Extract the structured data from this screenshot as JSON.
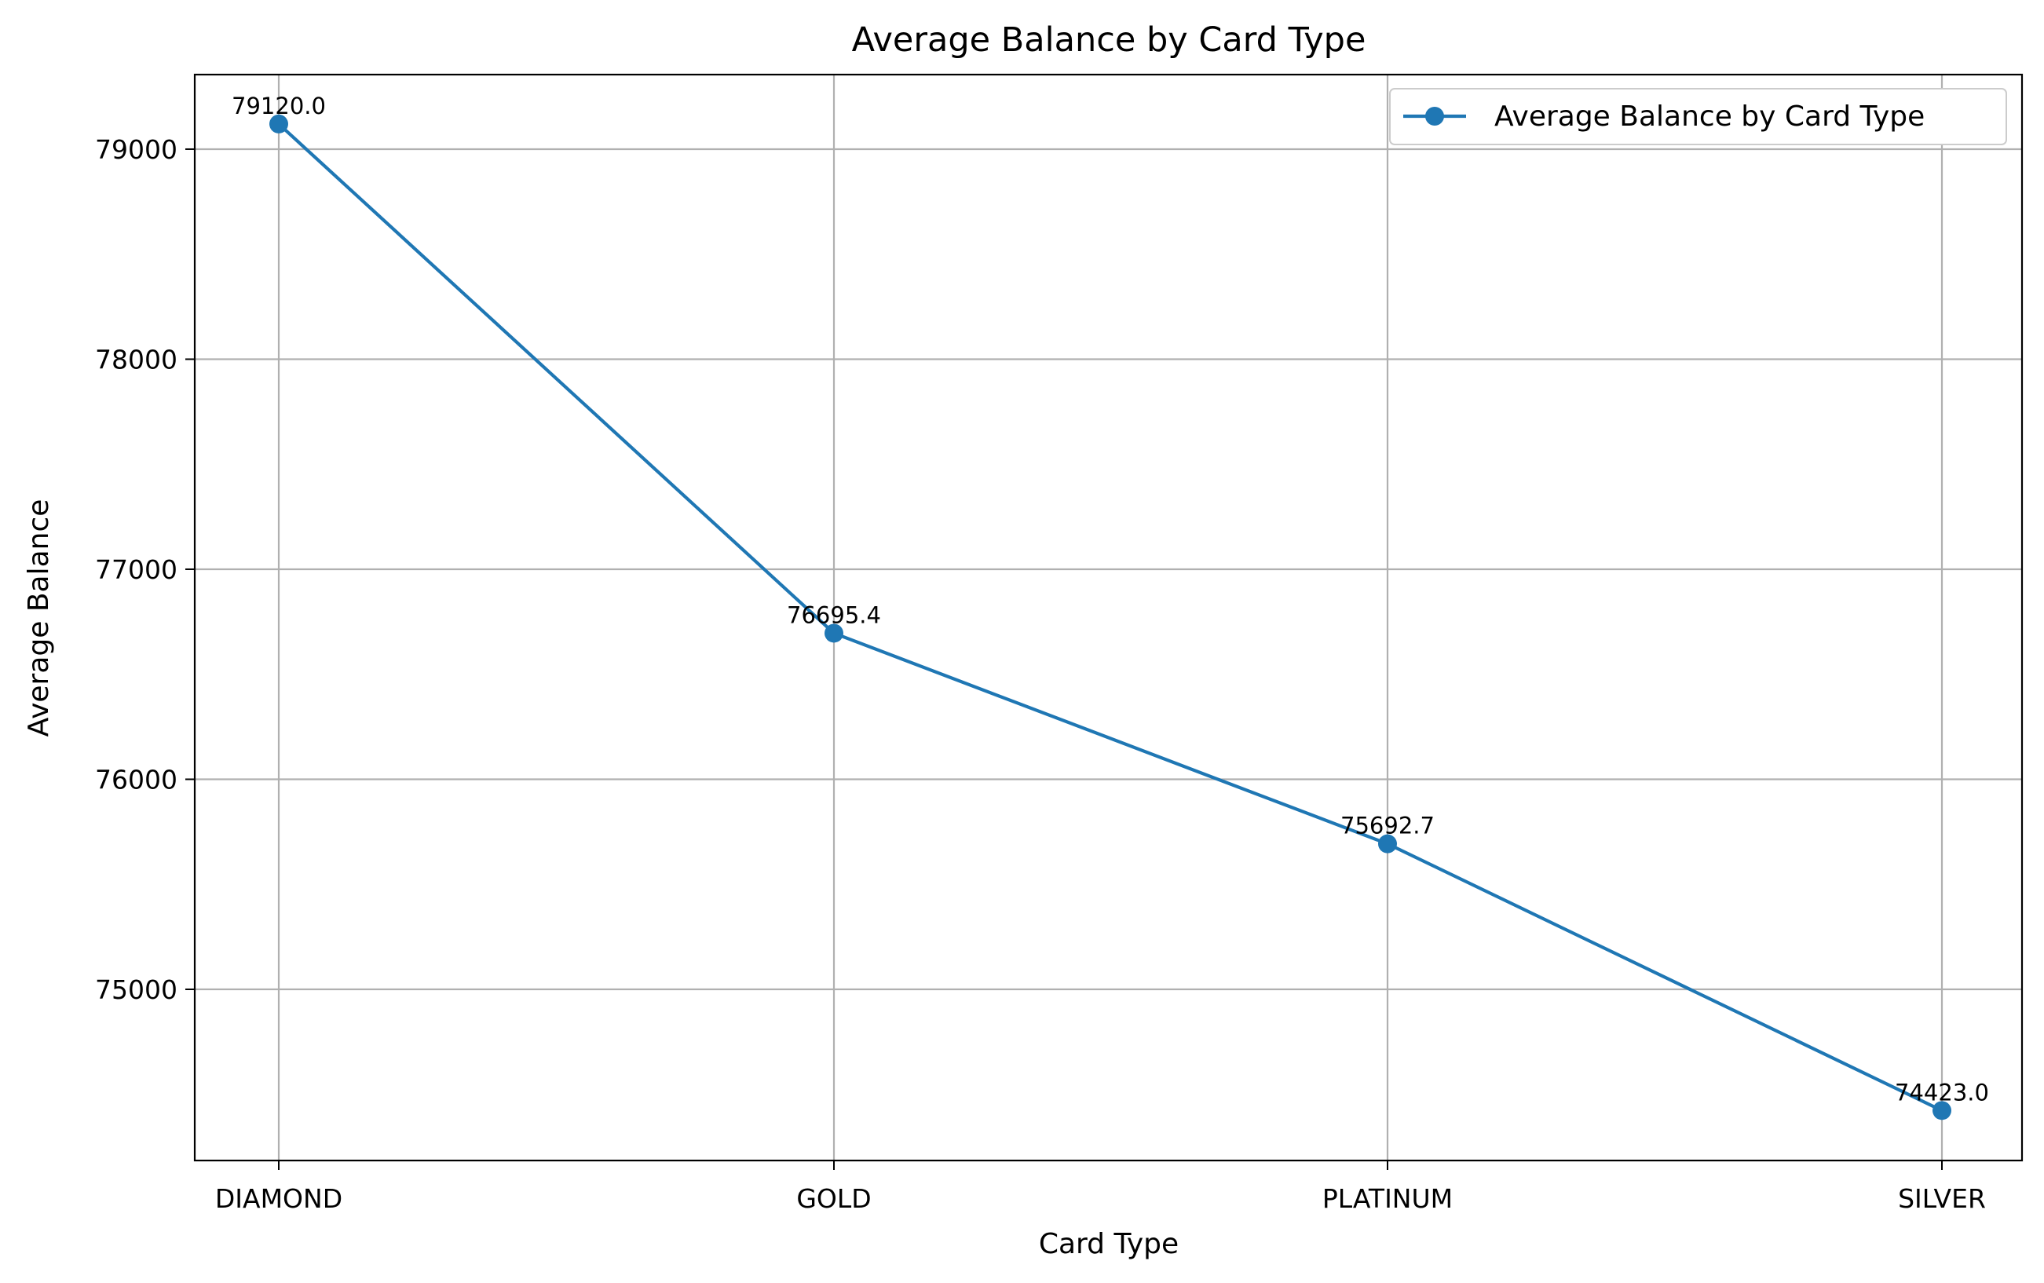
{
  "chart_data": {
    "type": "line",
    "title": "Average Balance by Card Type",
    "xlabel": "Card Type",
    "ylabel": "Average Balance",
    "categories": [
      "DIAMOND",
      "GOLD",
      "PLATINUM",
      "SILVER"
    ],
    "series": [
      {
        "name": "Average Balance by Card Type",
        "values": [
          79120.0,
          76695.4,
          75692.7,
          74423.0
        ],
        "labels": [
          "79120.0",
          "76695.4",
          "75692.7",
          "74423.0"
        ],
        "color": "#1f77b4",
        "marker": "circle"
      }
    ],
    "yticks": [
      75000,
      76000,
      77000,
      78000,
      79000
    ],
    "ytick_labels": [
      "75000",
      "76000",
      "77000",
      "78000",
      "79000"
    ],
    "ylim": [
      74185,
      79355
    ],
    "grid": true,
    "legend_position": "top-right",
    "grid_color": "#b0b0b0"
  }
}
